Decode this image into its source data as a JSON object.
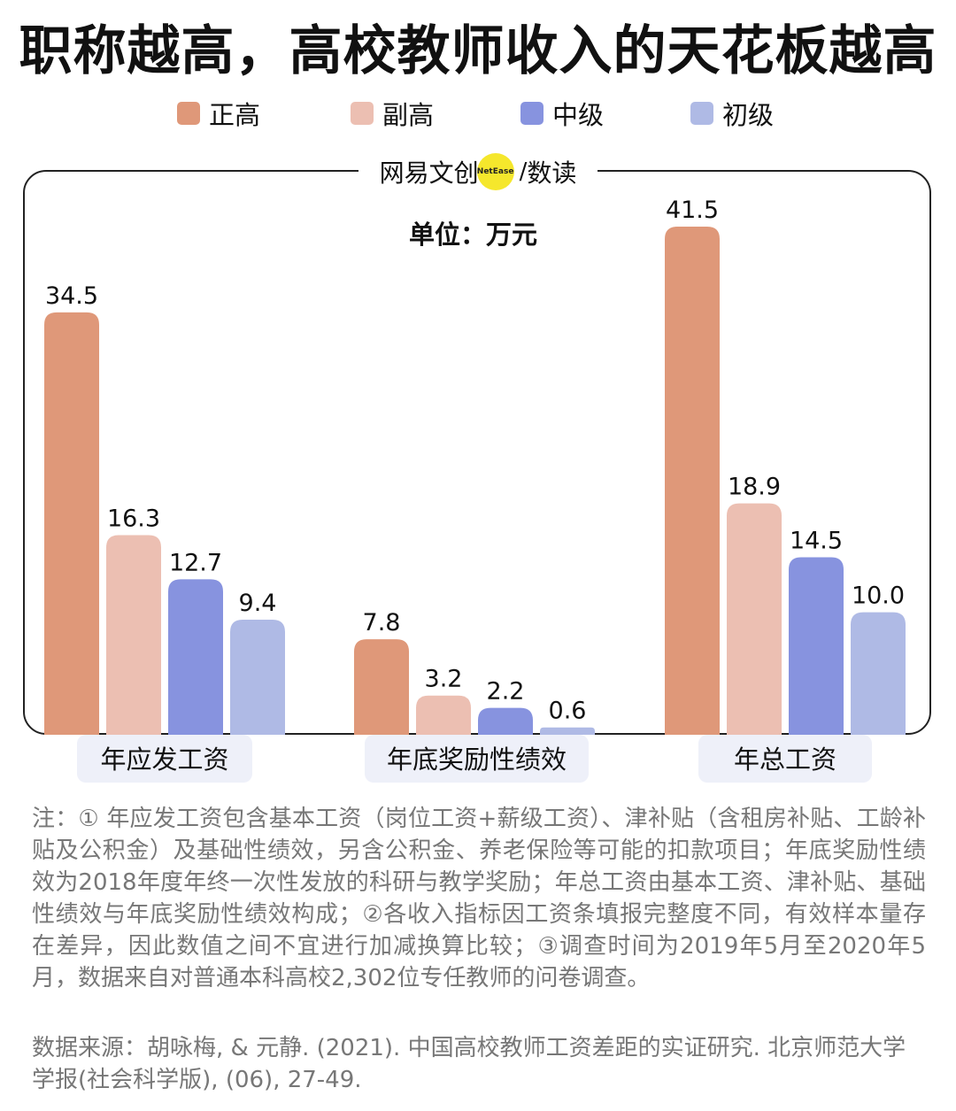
{
  "title": "职称越高，高校教师收入的天花板越高",
  "unit": "单位：万元",
  "brand": {
    "name": "网易文创",
    "badge": "NetEase",
    "separator": "/",
    "sub": "数读"
  },
  "colors": {
    "正高": "#df9879",
    "副高": "#ecbfb2",
    "中级": "#8793df",
    "初级": "#afbae5",
    "category_bg": "#eef0f9"
  },
  "chart_data": {
    "type": "bar",
    "categories": [
      "年应发工资",
      "年底奖励性绩效",
      "年总工资"
    ],
    "series": [
      {
        "name": "正高",
        "values": [
          34.5,
          7.8,
          41.5
        ]
      },
      {
        "name": "副高",
        "values": [
          16.3,
          3.2,
          18.9
        ]
      },
      {
        "name": "中级",
        "values": [
          12.7,
          2.2,
          14.5
        ]
      },
      {
        "name": "初级",
        "values": [
          9.4,
          0.6,
          10.0
        ]
      }
    ],
    "value_labels": [
      [
        "34.5",
        "7.8",
        "41.5"
      ],
      [
        "16.3",
        "3.2",
        "18.9"
      ],
      [
        "12.7",
        "2.2",
        "14.5"
      ],
      [
        "9.4",
        "0.6",
        "10.0"
      ]
    ],
    "ylim": [
      0,
      41.5
    ],
    "grid": false,
    "legend_position": "top"
  },
  "notes": "注：① 年应发工资包含基本工资（岗位工资+薪级工资）、津补贴（含租房补贴、工龄补贴及公积金）及基础性绩效，另含公积金、养老保险等可能的扣款项目；年底奖励性绩效为2018年度年终一次性发放的科研与教学奖励；年总工资由基本工资、津补贴、基础性绩效与年底奖励性绩效构成；②各收入指标因工资条填报完整度不同，有效样本量存在差异，因此数值之间不宜进行加减换算比较；③调查时间为2019年5月至2020年5月，数据来自对普通本科高校2,302位专任教师的问卷调查。",
  "source": "数据来源：胡咏梅, & 元静. (2021). 中国高校教师工资差距的实证研究. 北京师范大学学报(社会科学版), (06), 27-49."
}
